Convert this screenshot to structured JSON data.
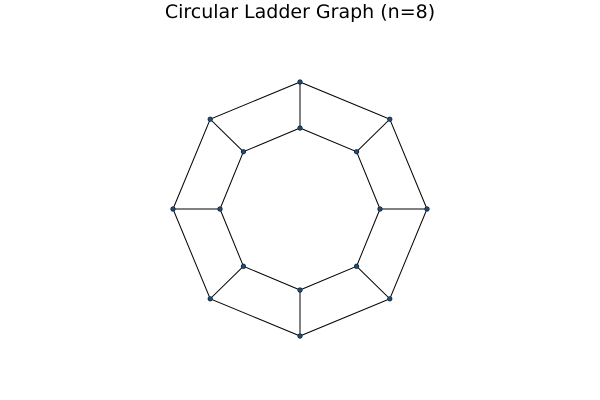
{
  "title": "Circular Ladder Graph (n=8)",
  "graph": {
    "type": "circular-ladder",
    "n": 8,
    "outer_ring": [
      "o0",
      "o1",
      "o2",
      "o3",
      "o4",
      "o5",
      "o6",
      "o7"
    ],
    "inner_ring": [
      "i0",
      "i1",
      "i2",
      "i3",
      "i4",
      "i5",
      "i6",
      "i7"
    ],
    "edges": [
      [
        "o0",
        "o1"
      ],
      [
        "o1",
        "o2"
      ],
      [
        "o2",
        "o3"
      ],
      [
        "o3",
        "o4"
      ],
      [
        "o4",
        "o5"
      ],
      [
        "o5",
        "o6"
      ],
      [
        "o6",
        "o7"
      ],
      [
        "o7",
        "o0"
      ],
      [
        "i0",
        "i1"
      ],
      [
        "i1",
        "i2"
      ],
      [
        "i2",
        "i3"
      ],
      [
        "i3",
        "i4"
      ],
      [
        "i4",
        "i5"
      ],
      [
        "i5",
        "i6"
      ],
      [
        "i6",
        "i7"
      ],
      [
        "i7",
        "i0"
      ],
      [
        "o0",
        "i0"
      ],
      [
        "o1",
        "i1"
      ],
      [
        "o2",
        "i2"
      ],
      [
        "o3",
        "i3"
      ],
      [
        "o4",
        "i4"
      ],
      [
        "o5",
        "i5"
      ],
      [
        "o6",
        "i6"
      ],
      [
        "o7",
        "i7"
      ]
    ]
  },
  "colors": {
    "node_fill": "#1f4e79",
    "node_stroke": "#0b1f33",
    "edge": "#000000"
  }
}
